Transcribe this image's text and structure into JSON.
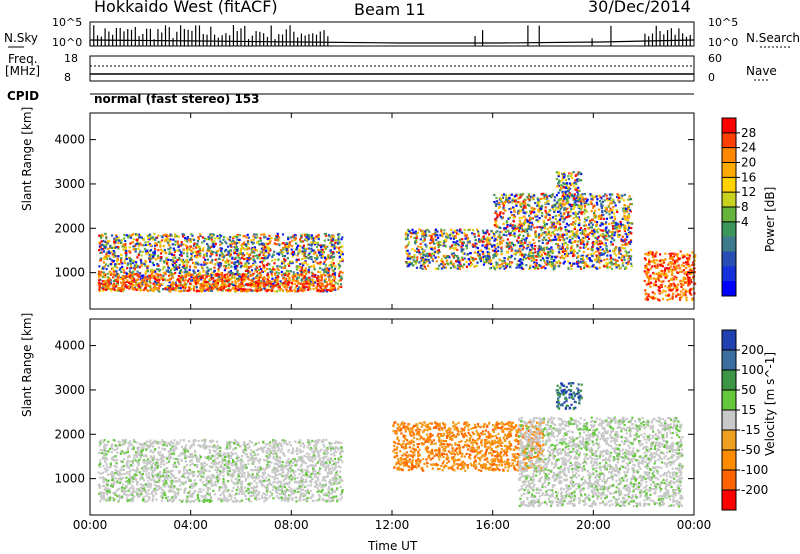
{
  "header": {
    "radar": "Hokkaido West (fitACF)",
    "beam": "Beam 11",
    "date": "30/Dec/2014"
  },
  "top_panels": {
    "nsky_label": "N.Sky",
    "nsky_ticks": [
      "10^5",
      "10^0"
    ],
    "nsearch_label": "N.Search",
    "nsearch_ticks": [
      "10^5",
      "10^0"
    ],
    "freq_label": "Freq.",
    "freq_unit": "[MHz]",
    "freq_ticks": [
      "18",
      "8"
    ],
    "nave_label": "Nave",
    "nave_ticks": [
      "60",
      "0"
    ],
    "cpid_label": "CPID",
    "cpid_value": "normal (fast stereo) 153"
  },
  "chart_data": [
    {
      "type": "heatmap",
      "name": "power",
      "ylabel": "Slant Range [km]",
      "yticks": [
        "4000",
        "3000",
        "2000",
        "1000"
      ],
      "ylim": [
        180,
        4600
      ],
      "colorbar": {
        "label": "Power [dB]",
        "ticks": [
          "28",
          "24",
          "20",
          "16",
          "12",
          "8",
          "4"
        ],
        "colors": [
          "#ff0000",
          "#ff4000",
          "#ff8800",
          "#ffaa00",
          "#ffd200",
          "#c8d21e",
          "#64b43c",
          "#3c965a",
          "#3c7a8c",
          "#2850b4",
          "#1432dc",
          "#0000ff"
        ]
      },
      "scatter_regions": [
        {
          "t": [
            0.3,
            10.0
          ],
          "r": [
            600,
            1900
          ],
          "level": "mix"
        },
        {
          "t": [
            0.3,
            9.7
          ],
          "r": [
            600,
            1000
          ],
          "level": "high"
        },
        {
          "t": [
            12.5,
            16.0
          ],
          "r": [
            1100,
            2000
          ],
          "level": "mix"
        },
        {
          "t": [
            16.0,
            21.5
          ],
          "r": [
            1100,
            2800
          ],
          "level": "mix"
        },
        {
          "t": [
            22.0,
            24.0
          ],
          "r": [
            400,
            1500
          ],
          "level": "high"
        },
        {
          "t": [
            18.5,
            19.5
          ],
          "r": [
            2500,
            3300
          ],
          "level": "mix"
        }
      ]
    },
    {
      "type": "heatmap",
      "name": "velocity",
      "ylabel": "Slant Range [km]",
      "yticks": [
        "4000",
        "3000",
        "2000",
        "1000"
      ],
      "ylim": [
        180,
        4600
      ],
      "colorbar": {
        "label": "Velocity [m s^-1]",
        "ticks": [
          "200",
          "100",
          "50",
          "15",
          "-15",
          "-50",
          "-100",
          "-200"
        ],
        "colors": [
          "#2040b0",
          "#3c6ea0",
          "#3c9646",
          "#64c83c",
          "#c8c8c8",
          "#f0a020",
          "#ff8c00",
          "#ff6400",
          "#ff0000"
        ]
      },
      "scatter_regions": [
        {
          "t": [
            0.3,
            10.0
          ],
          "r": [
            500,
            1900
          ],
          "level": "zero"
        },
        {
          "t": [
            12.0,
            18.0
          ],
          "r": [
            1200,
            2300
          ],
          "level": "neg"
        },
        {
          "t": [
            17.0,
            23.5
          ],
          "r": [
            400,
            2400
          ],
          "level": "zero"
        },
        {
          "t": [
            18.5,
            19.5
          ],
          "r": [
            2600,
            3200
          ],
          "level": "pos"
        }
      ]
    }
  ],
  "xaxis": {
    "label": "Time UT",
    "ticks": [
      "00:00",
      "04:00",
      "08:00",
      "12:00",
      "16:00",
      "20:00",
      "00:00"
    ],
    "range_hours": [
      0,
      24
    ]
  }
}
